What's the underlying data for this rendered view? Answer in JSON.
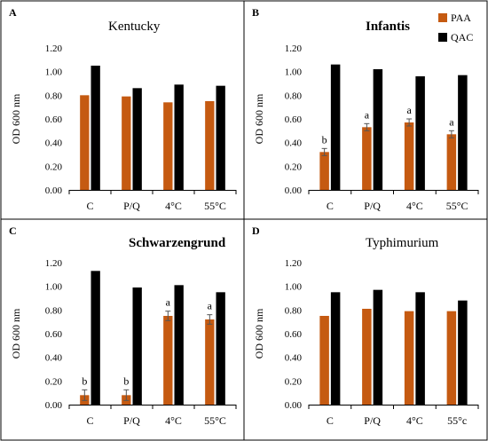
{
  "chart_data": [
    {
      "panel_letter": "A",
      "title": "Kentucky",
      "title_bold": false,
      "type": "bar",
      "categories": [
        "C",
        "P/Q",
        "4°C",
        "55°C"
      ],
      "ylabel": "OD 600 nm",
      "ylim": [
        0,
        1.2
      ],
      "yticks": [
        "0.00",
        "0.20",
        "0.40",
        "0.60",
        "0.80",
        "1.00",
        "1.20"
      ],
      "grid": false,
      "legend": false,
      "series": [
        {
          "values": [
            0.8,
            0.79,
            0.74,
            0.75
          ],
          "color": "#C55A11",
          "errors": [
            0,
            0,
            0,
            0
          ],
          "labels": [
            "",
            "",
            "",
            ""
          ]
        },
        {
          "values": [
            1.05,
            0.86,
            0.89,
            0.88
          ],
          "color": "#000000",
          "errors": [
            0,
            0,
            0,
            0
          ],
          "labels": [
            "",
            "",
            "",
            ""
          ]
        }
      ]
    },
    {
      "panel_letter": "B",
      "title": "Infantis",
      "title_bold": true,
      "type": "bar",
      "categories": [
        "C",
        "P/Q",
        "4°C",
        "55°C"
      ],
      "ylabel": "OD 600 nm",
      "ylim": [
        0,
        1.2
      ],
      "yticks": [
        "0.00",
        "0.20",
        "0.40",
        "0.60",
        "0.80",
        "1.00",
        "1.20"
      ],
      "grid": false,
      "legend": true,
      "legend_position": "top-right",
      "series": [
        {
          "name": "PAA",
          "values": [
            0.32,
            0.53,
            0.57,
            0.47
          ],
          "color": "#C55A11",
          "errors": [
            0.03,
            0.03,
            0.03,
            0.03
          ],
          "labels": [
            "b",
            "a",
            "a",
            "a"
          ]
        },
        {
          "name": "QAC",
          "values": [
            1.06,
            1.02,
            0.96,
            0.97
          ],
          "color": "#000000",
          "errors": [
            0,
            0,
            0,
            0
          ],
          "labels": [
            "",
            "",
            "",
            ""
          ]
        }
      ]
    },
    {
      "panel_letter": "C",
      "title": "Schwarzengrund",
      "title_bold": true,
      "type": "bar",
      "categories": [
        "C",
        "P/Q",
        "4°C",
        "55°C"
      ],
      "ylabel": "OD 600 nm",
      "ylim": [
        0,
        1.2
      ],
      "yticks": [
        "0.00",
        "0.20",
        "0.40",
        "0.60",
        "0.80",
        "1.00",
        "1.20"
      ],
      "grid": false,
      "legend": false,
      "series": [
        {
          "values": [
            0.08,
            0.08,
            0.75,
            0.72
          ],
          "color": "#C55A11",
          "errors": [
            0.045,
            0.045,
            0.04,
            0.04
          ],
          "labels": [
            "b",
            "b",
            "a",
            "a"
          ]
        },
        {
          "values": [
            1.13,
            0.99,
            1.01,
            0.95
          ],
          "color": "#000000",
          "errors": [
            0,
            0,
            0,
            0
          ],
          "labels": [
            "",
            "",
            "",
            ""
          ]
        }
      ]
    },
    {
      "panel_letter": "D",
      "title": "Typhimurium",
      "title_bold": false,
      "type": "bar",
      "categories": [
        "C",
        "P/Q",
        "4°C",
        "55°c"
      ],
      "ylabel": "OD 600 nm",
      "ylim": [
        0,
        1.2
      ],
      "yticks": [
        "0.00",
        "0.20",
        "0.40",
        "0.60",
        "0.80",
        "1.00",
        "1.20"
      ],
      "grid": false,
      "legend": false,
      "series": [
        {
          "values": [
            0.75,
            0.81,
            0.79,
            0.79
          ],
          "color": "#C55A11",
          "errors": [
            0,
            0,
            0,
            0
          ],
          "labels": [
            "",
            "",
            "",
            ""
          ]
        },
        {
          "values": [
            0.95,
            0.97,
            0.95,
            0.88
          ],
          "color": "#000000",
          "errors": [
            0,
            0,
            0,
            0
          ],
          "labels": [
            "",
            "",
            "",
            ""
          ]
        }
      ]
    }
  ]
}
